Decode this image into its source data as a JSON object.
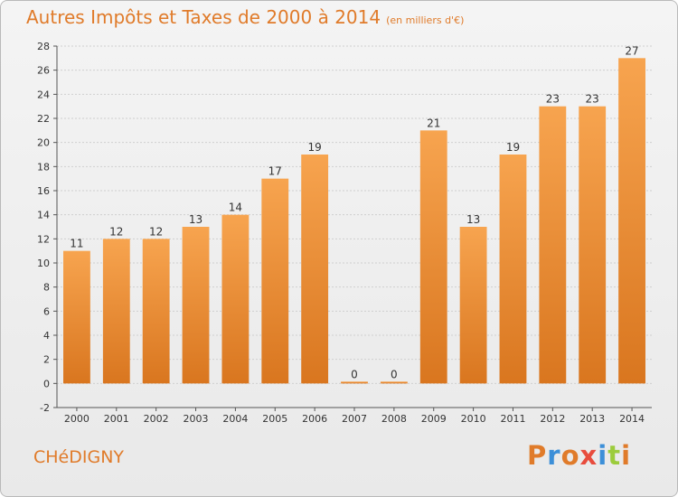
{
  "header": {
    "title": "Autres Impôts et Taxes de 2000 à 2014",
    "unit": "(en milliers d'€)"
  },
  "footer": {
    "commune": "CHéDIGNY",
    "brand": "Proxiti"
  },
  "colors": {
    "bar_light": "#f7a44f",
    "bar_dark": "#d9761f",
    "accent": "#e07b2a",
    "grid": "#cfcfcf",
    "brand_letters": [
      "#e07b2a",
      "#3c8fd8",
      "#e07b2a",
      "#e84c3d",
      "#3c8fd8",
      "#9ccc3c",
      "#e07b2a"
    ]
  },
  "chart_data": {
    "type": "bar",
    "title": "Autres Impôts et Taxes de 2000 à 2014",
    "subtitle": "(en milliers d'€)",
    "xlabel": "",
    "ylabel": "",
    "categories": [
      "2000",
      "2001",
      "2002",
      "2003",
      "2004",
      "2005",
      "2006",
      "2007",
      "2008",
      "2009",
      "2010",
      "2011",
      "2012",
      "2013",
      "2014"
    ],
    "values": [
      11,
      12,
      12,
      13,
      14,
      17,
      19,
      0,
      0,
      21,
      13,
      19,
      23,
      23,
      27
    ],
    "ylim": [
      -2,
      28
    ],
    "yticks": [
      -2,
      0,
      2,
      4,
      6,
      8,
      10,
      12,
      14,
      16,
      18,
      20,
      22,
      24,
      26,
      28
    ],
    "grid": true,
    "data_labels": true
  }
}
